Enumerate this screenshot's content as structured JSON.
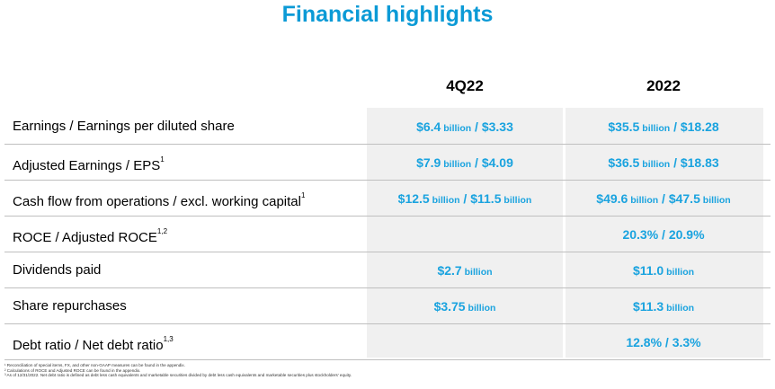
{
  "title": "Financial highlights",
  "columns": [
    "4Q22",
    "2022"
  ],
  "rows": [
    {
      "label": "Earnings / Earnings per diluted share",
      "sup": "",
      "q": {
        "a": "$6.4",
        "au": "billion",
        "sep": " / ",
        "b": "$3.33",
        "bu": ""
      },
      "y": {
        "a": "$35.5",
        "au": "billion",
        "sep": " / ",
        "b": "$18.28",
        "bu": ""
      }
    },
    {
      "label": "Adjusted Earnings / EPS",
      "sup": "1",
      "q": {
        "a": "$7.9",
        "au": "billion",
        "sep": " / ",
        "b": "$4.09",
        "bu": ""
      },
      "y": {
        "a": "$36.5",
        "au": "billion",
        "sep": " / ",
        "b": "$18.83",
        "bu": ""
      }
    },
    {
      "label": "Cash flow from operations / excl. working capital",
      "sup": "1",
      "q": {
        "a": "$12.5",
        "au": "billion",
        "sep": " / ",
        "b": "$11.5",
        "bu": "billion"
      },
      "y": {
        "a": "$49.6",
        "au": "billion",
        "sep": " / ",
        "b": "$47.5",
        "bu": "billion"
      }
    },
    {
      "label": "ROCE / Adjusted ROCE",
      "sup": "1,2",
      "q": {
        "a": "",
        "au": "",
        "sep": "",
        "b": "",
        "bu": ""
      },
      "y": {
        "a": "20.3%",
        "au": "",
        "sep": " / ",
        "b": "20.9%",
        "bu": ""
      }
    },
    {
      "label": "Dividends paid",
      "sup": "",
      "q": {
        "a": "$2.7",
        "au": "billion",
        "sep": "",
        "b": "",
        "bu": ""
      },
      "y": {
        "a": "$11.0",
        "au": "billion",
        "sep": "",
        "b": "",
        "bu": ""
      }
    },
    {
      "label": "Share repurchases",
      "sup": "",
      "q": {
        "a": "$3.75",
        "au": "billion",
        "sep": "",
        "b": "",
        "bu": ""
      },
      "y": {
        "a": "$11.3",
        "au": "billion",
        "sep": "",
        "b": "",
        "bu": ""
      }
    },
    {
      "label": "Debt ratio / Net debt ratio",
      "sup": "1,3",
      "q": {
        "a": "",
        "au": "",
        "sep": "",
        "b": "",
        "bu": ""
      },
      "y": {
        "a": "12.8%",
        "au": "",
        "sep": " / ",
        "b": "3.3%",
        "bu": ""
      }
    }
  ],
  "footnotes": [
    "¹ Reconciliation of special items, FX, and other non-GAAP measures can be found in the appendix.",
    "² Calculations of ROCE and Adjusted ROCE can be found in the appendix.",
    "³ As of 12/31/2022.  Net debt ratio is defined as debt less cash equivalents and marketable securities divided by debt less cash equivalents and marketable securities plus stockholders' equity."
  ],
  "colors": {
    "accent": "#0b9ad6",
    "value": "#1aa3df",
    "shade": "#f0f0f0"
  }
}
